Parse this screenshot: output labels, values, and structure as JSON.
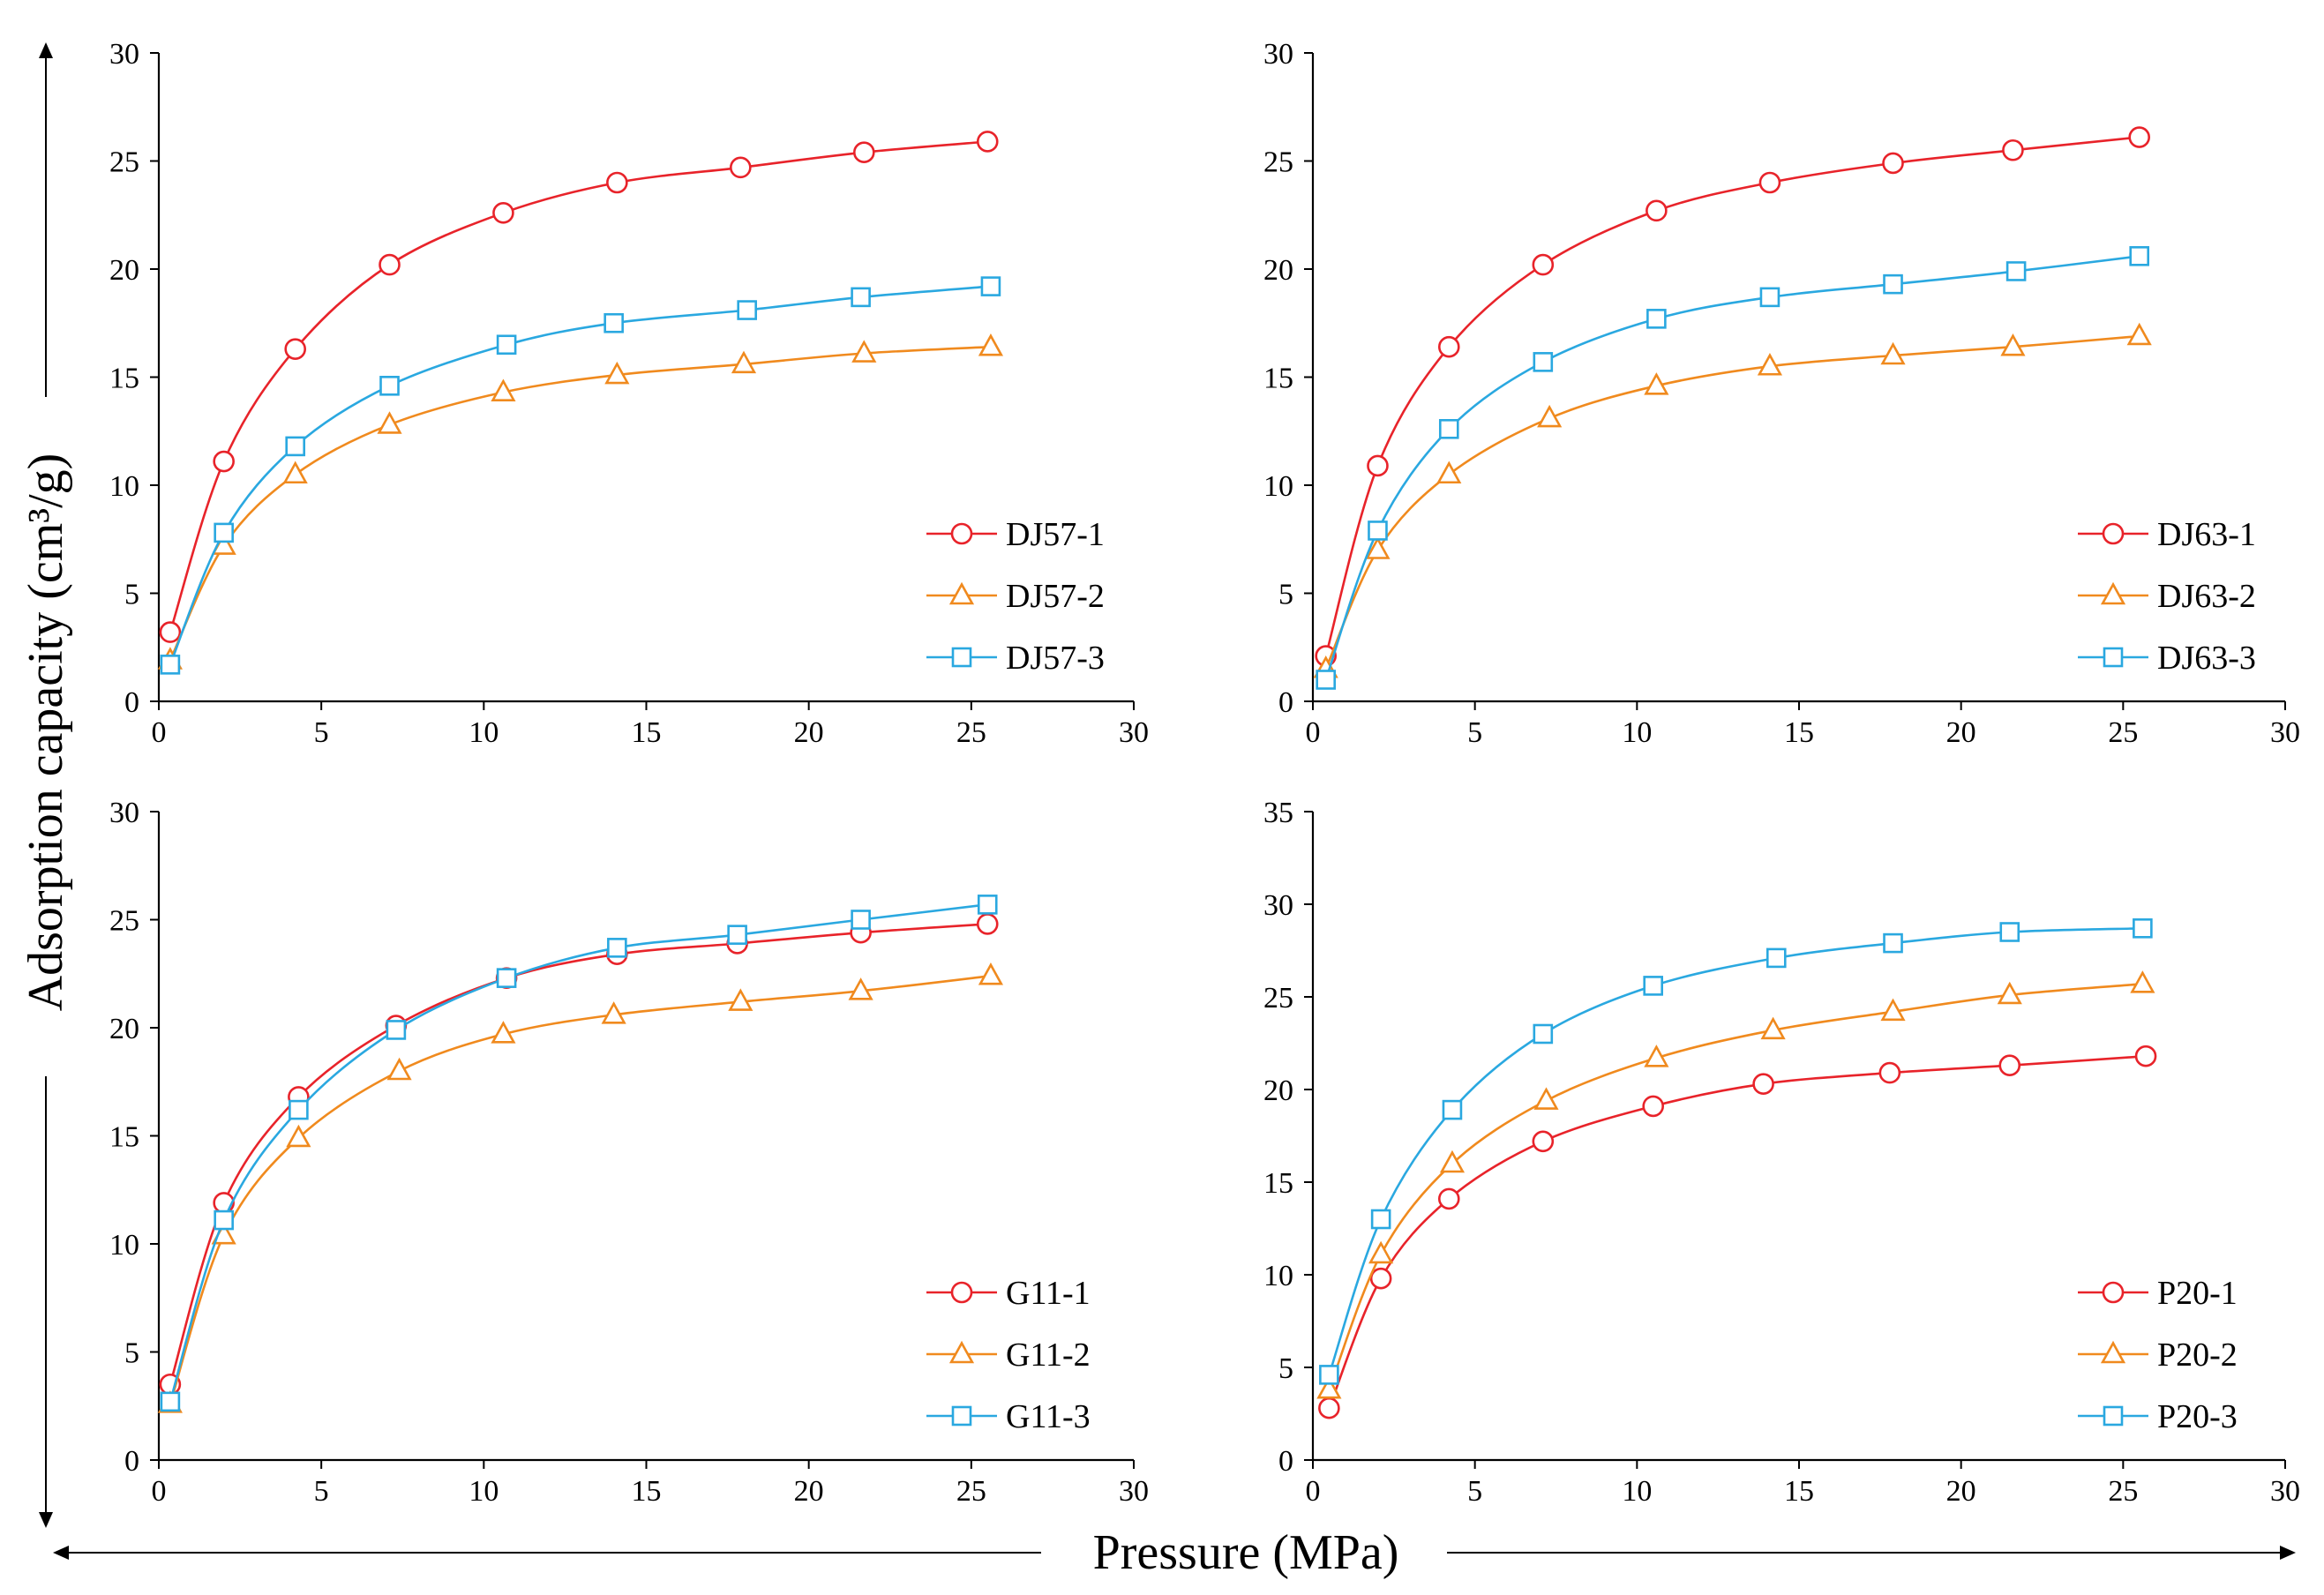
{
  "figure": {
    "y_axis_title": "Adsorption capacity (cm³/g)",
    "x_axis_title": "Pressure (MPa)"
  },
  "colors": {
    "red": "#e8232a",
    "orange": "#f08a1e",
    "blue": "#2aa8e0",
    "axis": "#000000"
  },
  "chart_data": [
    {
      "type": "line",
      "xlim": [
        0,
        30
      ],
      "ylim": [
        0,
        30
      ],
      "xticks": [
        0,
        5,
        10,
        15,
        20,
        25,
        30
      ],
      "yticks": [
        0,
        5,
        10,
        15,
        20,
        25,
        30
      ],
      "xlabel": "Pressure (MPa)",
      "ylabel": "Adsorption capacity (cm³/g)",
      "legend_position": "bottom-right",
      "series": [
        {
          "name": "DJ57-1",
          "color": "#e8232a",
          "marker": "circle",
          "x": [
            0.35,
            2.0,
            4.2,
            7.1,
            10.6,
            14.1,
            17.9,
            21.7,
            25.5
          ],
          "y": [
            3.2,
            11.1,
            16.3,
            20.2,
            22.6,
            24.0,
            24.7,
            25.4,
            25.9
          ]
        },
        {
          "name": "DJ57-2",
          "color": "#f08a1e",
          "marker": "triangle",
          "x": [
            0.35,
            2.0,
            4.2,
            7.1,
            10.6,
            14.1,
            18.0,
            21.7,
            25.6
          ],
          "y": [
            1.9,
            7.2,
            10.5,
            12.8,
            14.3,
            15.1,
            15.6,
            16.1,
            16.4
          ]
        },
        {
          "name": "DJ57-3",
          "color": "#2aa8e0",
          "marker": "square",
          "x": [
            0.35,
            2.0,
            4.2,
            7.1,
            10.7,
            14.0,
            18.1,
            21.6,
            25.6
          ],
          "y": [
            1.7,
            7.8,
            11.8,
            14.6,
            16.5,
            17.5,
            18.1,
            18.7,
            19.2
          ]
        }
      ]
    },
    {
      "type": "line",
      "xlim": [
        0,
        30
      ],
      "ylim": [
        0,
        30
      ],
      "xticks": [
        0,
        5,
        10,
        15,
        20,
        25,
        30
      ],
      "yticks": [
        0,
        5,
        10,
        15,
        20,
        25,
        30
      ],
      "xlabel": "Pressure (MPa)",
      "ylabel": "Adsorption capacity (cm³/g)",
      "legend_position": "bottom-right",
      "series": [
        {
          "name": "DJ63-1",
          "color": "#e8232a",
          "marker": "circle",
          "x": [
            0.4,
            2.0,
            4.2,
            7.1,
            10.6,
            14.1,
            17.9,
            21.6,
            25.5
          ],
          "y": [
            2.1,
            10.9,
            16.4,
            20.2,
            22.7,
            24.0,
            24.9,
            25.5,
            26.1
          ]
        },
        {
          "name": "DJ63-2",
          "color": "#f08a1e",
          "marker": "triangle",
          "x": [
            0.4,
            2.0,
            4.2,
            7.3,
            10.6,
            14.1,
            17.9,
            21.6,
            25.5
          ],
          "y": [
            1.5,
            7.0,
            10.5,
            13.1,
            14.6,
            15.5,
            16.0,
            16.4,
            16.9
          ]
        },
        {
          "name": "DJ63-3",
          "color": "#2aa8e0",
          "marker": "square",
          "x": [
            0.4,
            2.0,
            4.2,
            7.1,
            10.6,
            14.1,
            17.9,
            21.7,
            25.5
          ],
          "y": [
            1.0,
            7.9,
            12.6,
            15.7,
            17.7,
            18.7,
            19.3,
            19.9,
            20.6
          ]
        }
      ]
    },
    {
      "type": "line",
      "xlim": [
        0,
        30
      ],
      "ylim": [
        0,
        30
      ],
      "xticks": [
        0,
        5,
        10,
        15,
        20,
        25,
        30
      ],
      "yticks": [
        0,
        5,
        10,
        15,
        20,
        25,
        30
      ],
      "xlabel": "Pressure (MPa)",
      "ylabel": "Adsorption capacity (cm³/g)",
      "legend_position": "bottom-right",
      "series": [
        {
          "name": "G11-1",
          "color": "#e8232a",
          "marker": "circle",
          "x": [
            0.35,
            2.0,
            4.3,
            7.3,
            10.7,
            14.1,
            17.8,
            21.6,
            25.5
          ],
          "y": [
            3.5,
            11.9,
            16.8,
            20.1,
            22.3,
            23.4,
            23.9,
            24.4,
            24.8
          ]
        },
        {
          "name": "G11-2",
          "color": "#f08a1e",
          "marker": "triangle",
          "x": [
            0.35,
            2.0,
            4.3,
            7.4,
            10.6,
            14.0,
            17.9,
            21.6,
            25.6
          ],
          "y": [
            2.6,
            10.4,
            14.9,
            18.0,
            19.7,
            20.6,
            21.2,
            21.7,
            22.4
          ]
        },
        {
          "name": "G11-3",
          "color": "#2aa8e0",
          "marker": "square",
          "x": [
            0.35,
            2.0,
            4.3,
            7.3,
            10.7,
            14.1,
            17.8,
            21.6,
            25.5
          ],
          "y": [
            2.7,
            11.1,
            16.2,
            19.9,
            22.3,
            23.7,
            24.3,
            25.0,
            25.7
          ]
        }
      ]
    },
    {
      "type": "line",
      "xlim": [
        0,
        30
      ],
      "ylim": [
        0,
        35
      ],
      "xticks": [
        0,
        5,
        10,
        15,
        20,
        25,
        30
      ],
      "yticks": [
        0,
        5,
        10,
        15,
        20,
        25,
        30,
        35
      ],
      "xlabel": "Pressure (MPa)",
      "ylabel": "Adsorption capacity (cm³/g)",
      "legend_position": "bottom-right",
      "series": [
        {
          "name": "P20-1",
          "color": "#e8232a",
          "marker": "circle",
          "x": [
            0.5,
            2.1,
            4.2,
            7.1,
            10.5,
            13.9,
            17.8,
            21.5,
            25.7
          ],
          "y": [
            2.8,
            9.8,
            14.1,
            17.2,
            19.1,
            20.3,
            20.9,
            21.3,
            21.8
          ]
        },
        {
          "name": "P20-2",
          "color": "#f08a1e",
          "marker": "triangle",
          "x": [
            0.5,
            2.1,
            4.3,
            7.2,
            10.6,
            14.2,
            17.9,
            21.5,
            25.6
          ],
          "y": [
            3.8,
            11.1,
            16.0,
            19.4,
            21.7,
            23.2,
            24.2,
            25.1,
            25.7
          ]
        },
        {
          "name": "P20-3",
          "color": "#2aa8e0",
          "marker": "square",
          "x": [
            0.5,
            2.1,
            4.3,
            7.1,
            10.5,
            14.3,
            17.9,
            21.5,
            25.6
          ],
          "y": [
            4.6,
            13.0,
            18.9,
            23.0,
            25.6,
            27.1,
            27.9,
            28.5,
            28.7
          ]
        }
      ]
    }
  ]
}
